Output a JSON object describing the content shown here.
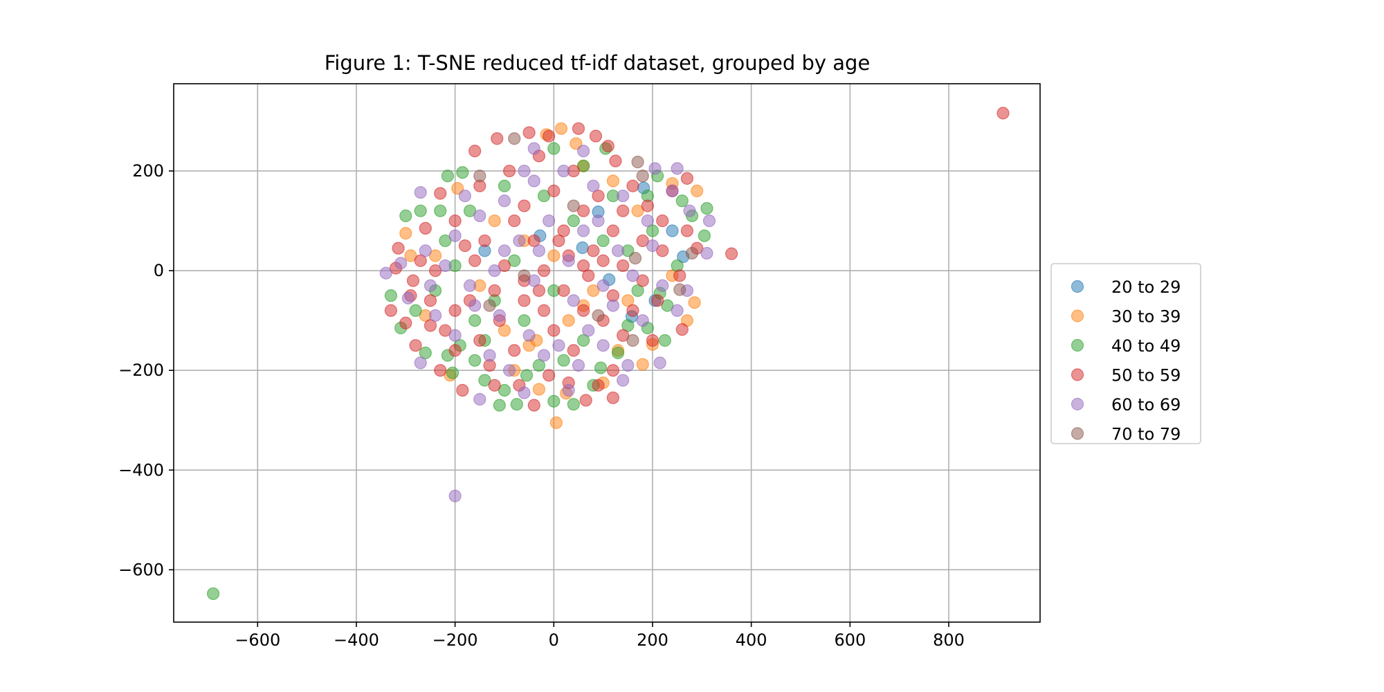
{
  "chart_data": {
    "type": "scatter",
    "title": "Figure 1: T-SNE reduced tf-idf dataset, grouped by age",
    "xlabel": "",
    "ylabel": "",
    "xlim": [
      -770,
      985
    ],
    "ylim": [
      -705,
      375
    ],
    "xticks": [
      -600,
      -400,
      -200,
      0,
      200,
      400,
      600,
      800
    ],
    "yticks": [
      200,
      0,
      -200,
      -400,
      -600
    ],
    "xtick_labels": [
      "−600",
      "−400",
      "−200",
      "0",
      "200",
      "400",
      "600",
      "800"
    ],
    "ytick_labels": [
      "200",
      "0",
      "−200",
      "−400",
      "−600"
    ],
    "grid": true,
    "legend_position": "center-right-outside",
    "series": [
      {
        "name": "20 to 29",
        "color": "#1f77b4",
        "points": [
          [
            182,
            166
          ],
          [
            262,
            28
          ],
          [
            158,
            -92
          ],
          [
            58,
            46
          ],
          [
            -28,
            70
          ],
          [
            112,
            -18
          ],
          [
            205,
            -60
          ],
          [
            -140,
            40
          ],
          [
            90,
            118
          ],
          [
            240,
            80
          ]
        ]
      },
      {
        "name": "30 to 39",
        "color": "#ff7f0e",
        "points": [
          [
            15,
            285
          ],
          [
            45,
            255
          ],
          [
            -15,
            273
          ],
          [
            -195,
            165
          ],
          [
            -300,
            75
          ],
          [
            -260,
            -90
          ],
          [
            -240,
            30
          ],
          [
            -80,
            -200
          ],
          [
            -30,
            -238
          ],
          [
            5,
            -305
          ],
          [
            25,
            -246
          ],
          [
            100,
            -225
          ],
          [
            180,
            -188
          ],
          [
            200,
            -148
          ],
          [
            285,
            -64
          ],
          [
            290,
            160
          ],
          [
            240,
            175
          ],
          [
            120,
            180
          ],
          [
            60,
            210
          ],
          [
            -120,
            100
          ],
          [
            -60,
            60
          ],
          [
            0,
            30
          ],
          [
            80,
            -40
          ],
          [
            -150,
            -30
          ],
          [
            -100,
            -120
          ],
          [
            30,
            -100
          ],
          [
            150,
            -60
          ],
          [
            240,
            -10
          ],
          [
            -50,
            -150
          ],
          [
            130,
            -160
          ],
          [
            -290,
            30
          ],
          [
            60,
            -70
          ],
          [
            -210,
            -210
          ],
          [
            -35,
            -140
          ],
          [
            170,
            120
          ],
          [
            270,
            -100
          ]
        ]
      },
      {
        "name": "40 to 49",
        "color": "#2ca02c",
        "points": [
          [
            -690,
            -648
          ],
          [
            105,
            245
          ],
          [
            -215,
            190
          ],
          [
            -185,
            197
          ],
          [
            0,
            245
          ],
          [
            60,
            210
          ],
          [
            -300,
            110
          ],
          [
            -270,
            120
          ],
          [
            -330,
            -50
          ],
          [
            -310,
            -115
          ],
          [
            -260,
            -165
          ],
          [
            -215,
            -170
          ],
          [
            -205,
            -205
          ],
          [
            -110,
            -270
          ],
          [
            -75,
            -268
          ],
          [
            40,
            -268
          ],
          [
            0,
            -262
          ],
          [
            -100,
            -240
          ],
          [
            -55,
            -210
          ],
          [
            95,
            -195
          ],
          [
            130,
            -165
          ],
          [
            190,
            -115
          ],
          [
            225,
            -140
          ],
          [
            215,
            -45
          ],
          [
            230,
            -70
          ],
          [
            310,
            125
          ],
          [
            305,
            70
          ],
          [
            280,
            110
          ],
          [
            260,
            140
          ],
          [
            120,
            150
          ],
          [
            -190,
            -150
          ],
          [
            -160,
            -100
          ],
          [
            -140,
            -140
          ],
          [
            -120,
            -60
          ],
          [
            -60,
            -100
          ],
          [
            20,
            -180
          ],
          [
            60,
            -140
          ],
          [
            150,
            40
          ],
          [
            200,
            80
          ],
          [
            -220,
            60
          ],
          [
            -240,
            -40
          ],
          [
            -170,
            120
          ],
          [
            -100,
            170
          ],
          [
            -20,
            150
          ],
          [
            40,
            100
          ],
          [
            100,
            60
          ],
          [
            0,
            -40
          ],
          [
            -80,
            20
          ],
          [
            170,
            -40
          ],
          [
            250,
            10
          ],
          [
            -280,
            -80
          ],
          [
            -230,
            120
          ],
          [
            80,
            -230
          ],
          [
            -140,
            -220
          ],
          [
            -30,
            -190
          ],
          [
            210,
            190
          ],
          [
            150,
            -110
          ],
          [
            -200,
            10
          ],
          [
            -160,
            -180
          ],
          [
            190,
            150
          ]
        ]
      },
      {
        "name": "50 to 59",
        "color": "#d62728",
        "points": [
          [
            910,
            316
          ],
          [
            360,
            34
          ],
          [
            -115,
            265
          ],
          [
            -50,
            277
          ],
          [
            50,
            285
          ],
          [
            85,
            270
          ],
          [
            125,
            220
          ],
          [
            270,
            185
          ],
          [
            -230,
            155
          ],
          [
            -260,
            85
          ],
          [
            -315,
            45
          ],
          [
            -320,
            5
          ],
          [
            -285,
            -20
          ],
          [
            -330,
            -80
          ],
          [
            -300,
            -105
          ],
          [
            -280,
            -150
          ],
          [
            -230,
            -200
          ],
          [
            -185,
            -240
          ],
          [
            -120,
            -230
          ],
          [
            -40,
            -270
          ],
          [
            65,
            -260
          ],
          [
            120,
            -255
          ],
          [
            90,
            -230
          ],
          [
            30,
            -225
          ],
          [
            -10,
            -210
          ],
          [
            260,
            -118
          ],
          [
            290,
            45
          ],
          [
            255,
            -10
          ],
          [
            220,
            100
          ],
          [
            180,
            60
          ],
          [
            140,
            120
          ],
          [
            90,
            150
          ],
          [
            40,
            200
          ],
          [
            -30,
            230
          ],
          [
            -90,
            200
          ],
          [
            -150,
            170
          ],
          [
            -200,
            100
          ],
          [
            -240,
            0
          ],
          [
            -200,
            -80
          ],
          [
            -150,
            -140
          ],
          [
            -80,
            -160
          ],
          [
            0,
            -120
          ],
          [
            60,
            -80
          ],
          [
            120,
            -50
          ],
          [
            180,
            -20
          ],
          [
            220,
            40
          ],
          [
            140,
            10
          ],
          [
            60,
            10
          ],
          [
            -20,
            0
          ],
          [
            -100,
            10
          ],
          [
            -160,
            20
          ],
          [
            -120,
            -40
          ],
          [
            -60,
            -60
          ],
          [
            20,
            -40
          ],
          [
            100,
            -100
          ],
          [
            160,
            -80
          ],
          [
            200,
            -140
          ],
          [
            -40,
            60
          ],
          [
            20,
            80
          ],
          [
            80,
            40
          ],
          [
            -80,
            100
          ],
          [
            -140,
            60
          ],
          [
            -200,
            -160
          ],
          [
            -250,
            -60
          ],
          [
            -180,
            50
          ],
          [
            -60,
            130
          ],
          [
            0,
            160
          ],
          [
            60,
            120
          ],
          [
            120,
            80
          ],
          [
            190,
            130
          ],
          [
            240,
            160
          ],
          [
            -20,
            -80
          ],
          [
            40,
            -160
          ],
          [
            120,
            -200
          ],
          [
            -110,
            -100
          ],
          [
            -170,
            -60
          ],
          [
            -220,
            -120
          ],
          [
            160,
            170
          ],
          [
            100,
            20
          ],
          [
            -60,
            -20
          ],
          [
            30,
            30
          ],
          [
            -30,
            -40
          ],
          [
            10,
            60
          ],
          [
            70,
            -10
          ],
          [
            140,
            -130
          ],
          [
            -130,
            -190
          ],
          [
            -70,
            -230
          ],
          [
            210,
            -60
          ],
          [
            270,
            80
          ],
          [
            -270,
            20
          ],
          [
            -290,
            -50
          ],
          [
            -250,
            -110
          ],
          [
            -160,
            240
          ],
          [
            -10,
            270
          ],
          [
            110,
            250
          ]
        ]
      },
      {
        "name": "60 to 69",
        "color": "#9467bd",
        "points": [
          [
            -200,
            -452
          ],
          [
            -270,
            157
          ],
          [
            -40,
            245
          ],
          [
            250,
            205
          ],
          [
            205,
            205
          ],
          [
            240,
            160
          ],
          [
            310,
            35
          ],
          [
            315,
            100
          ],
          [
            275,
            120
          ],
          [
            250,
            -80
          ],
          [
            215,
            -185
          ],
          [
            140,
            -220
          ],
          [
            30,
            -240
          ],
          [
            -60,
            -245
          ],
          [
            -150,
            -258
          ],
          [
            -270,
            -185
          ],
          [
            -295,
            -55
          ],
          [
            -340,
            -5
          ],
          [
            -310,
            15
          ],
          [
            -260,
            40
          ],
          [
            -200,
            70
          ],
          [
            -150,
            110
          ],
          [
            -100,
            140
          ],
          [
            -40,
            180
          ],
          [
            20,
            200
          ],
          [
            80,
            170
          ],
          [
            140,
            150
          ],
          [
            190,
            100
          ],
          [
            200,
            50
          ],
          [
            160,
            -10
          ],
          [
            120,
            -70
          ],
          [
            70,
            -120
          ],
          [
            10,
            -150
          ],
          [
            -50,
            -130
          ],
          [
            -110,
            -90
          ],
          [
            -170,
            -30
          ],
          [
            -220,
            10
          ],
          [
            -100,
            40
          ],
          [
            -40,
            -20
          ],
          [
            30,
            20
          ],
          [
            100,
            -30
          ],
          [
            -70,
            60
          ],
          [
            -10,
            100
          ],
          [
            60,
            80
          ],
          [
            130,
            40
          ],
          [
            180,
            -100
          ],
          [
            -130,
            -170
          ],
          [
            -200,
            -130
          ],
          [
            -240,
            -90
          ],
          [
            -90,
            -200
          ],
          [
            -20,
            -170
          ],
          [
            50,
            -190
          ],
          [
            100,
            -150
          ],
          [
            150,
            -190
          ],
          [
            220,
            -30
          ],
          [
            270,
            -40
          ],
          [
            -180,
            150
          ],
          [
            -60,
            200
          ],
          [
            60,
            240
          ],
          [
            -160,
            -70
          ],
          [
            -120,
            0
          ],
          [
            -30,
            40
          ],
          [
            40,
            -60
          ],
          [
            90,
            100
          ],
          [
            -250,
            -30
          ]
        ]
      },
      {
        "name": "70 to 79",
        "color": "#8c564b",
        "points": [
          [
            -80,
            265
          ],
          [
            170,
            218
          ],
          [
            180,
            190
          ],
          [
            -150,
            190
          ],
          [
            255,
            -38
          ],
          [
            160,
            -140
          ],
          [
            280,
            35
          ],
          [
            165,
            25
          ],
          [
            -60,
            -10
          ],
          [
            40,
            130
          ],
          [
            -130,
            -70
          ],
          [
            90,
            -90
          ]
        ]
      }
    ]
  }
}
